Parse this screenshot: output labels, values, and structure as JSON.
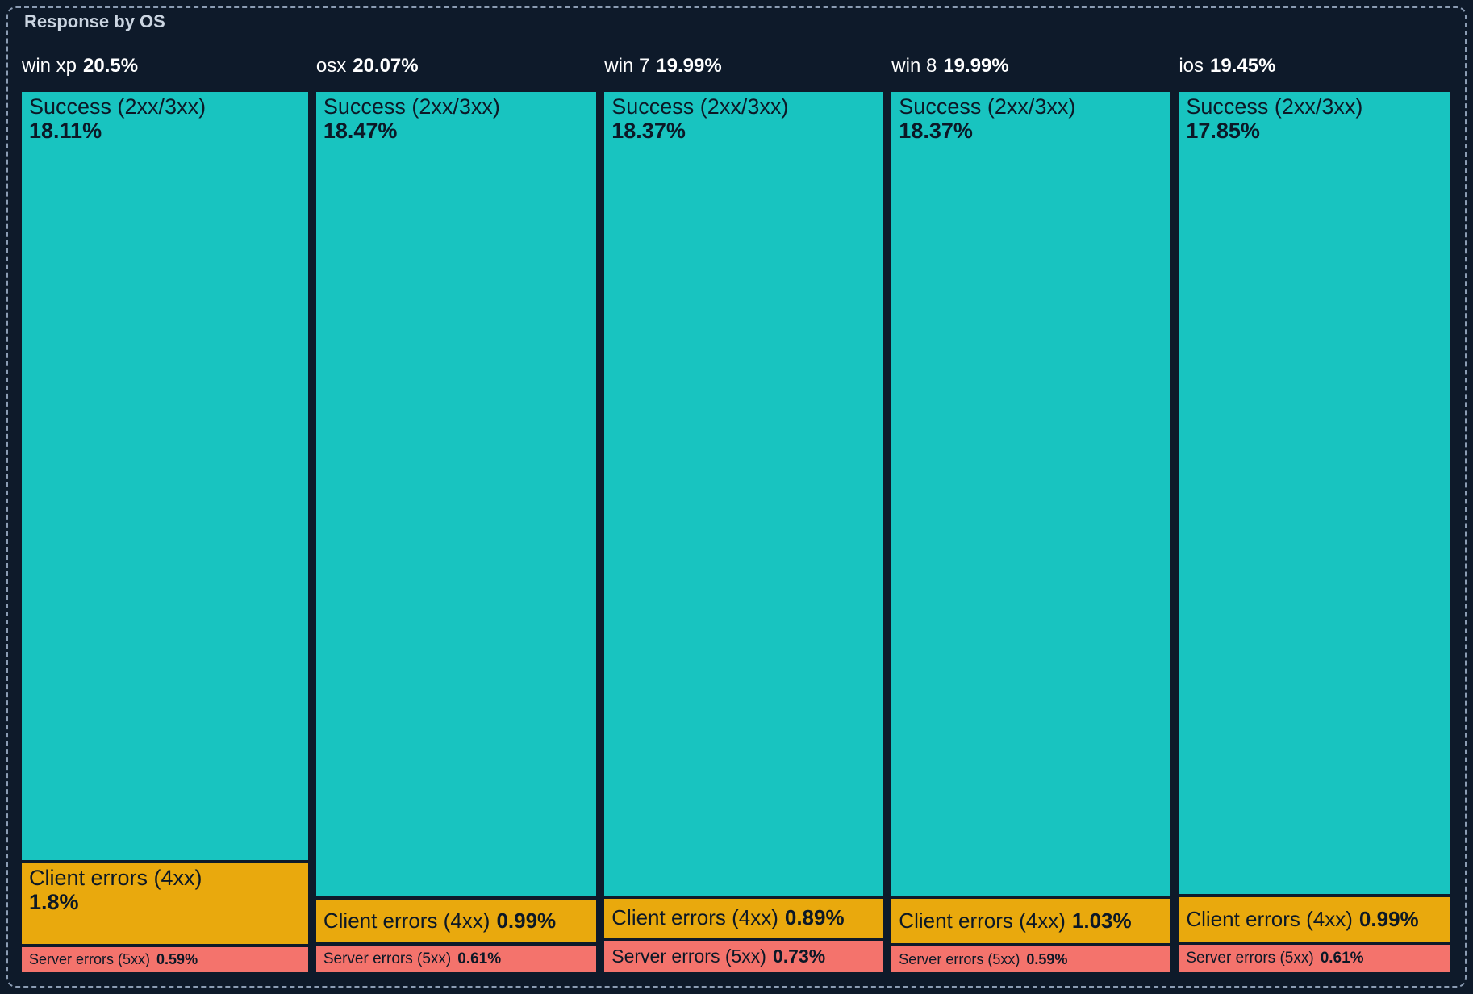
{
  "panel": {
    "title": "Response by OS"
  },
  "colors": {
    "background": "#0e1a2a",
    "dashed_border": "#8b9cb3",
    "title_text": "#cbd5e1",
    "header_text": "#ffffff",
    "block_text": "#0c1826",
    "success": "#18c4c0",
    "client_errors": "#e9a90d",
    "server_errors": "#f4736c"
  },
  "chart_data": {
    "type": "treemap",
    "title": "Response by OS",
    "legend": "none",
    "layout": "five columns (one per OS), each split vertically into stacked proportional blocks; labels inside blocks",
    "categories": [
      "win xp",
      "osx",
      "win 7",
      "win 8",
      "ios"
    ],
    "totals": [
      20.5,
      20.07,
      19.99,
      19.99,
      19.45
    ],
    "series": [
      {
        "name": "Success (2xx/3xx)",
        "values": [
          18.11,
          18.47,
          18.37,
          18.37,
          17.85
        ]
      },
      {
        "name": "Client errors (4xx)",
        "values": [
          1.8,
          0.99,
          0.89,
          1.03,
          0.99
        ]
      },
      {
        "name": "Server errors (5xx)",
        "values": [
          0.59,
          0.61,
          0.73,
          0.59,
          0.61
        ]
      }
    ],
    "columns": [
      {
        "os": "win xp",
        "total": 20.5,
        "total_display": "20.5%",
        "segments": [
          {
            "kind": "success",
            "label": "Success (2xx/3xx)",
            "value": 18.11,
            "display": "18.11%"
          },
          {
            "kind": "client",
            "label": "Client errors (4xx)",
            "value": 1.8,
            "display": "1.8%"
          },
          {
            "kind": "server",
            "label": "Server errors (5xx)",
            "value": 0.59,
            "display": "0.59%"
          }
        ]
      },
      {
        "os": "osx",
        "total": 20.07,
        "total_display": "20.07%",
        "segments": [
          {
            "kind": "success",
            "label": "Success (2xx/3xx)",
            "value": 18.47,
            "display": "18.47%"
          },
          {
            "kind": "client",
            "label": "Client errors (4xx)",
            "value": 0.99,
            "display": "0.99%"
          },
          {
            "kind": "server",
            "label": "Server errors (5xx)",
            "value": 0.61,
            "display": "0.61%"
          }
        ]
      },
      {
        "os": "win 7",
        "total": 19.99,
        "total_display": "19.99%",
        "segments": [
          {
            "kind": "success",
            "label": "Success (2xx/3xx)",
            "value": 18.37,
            "display": "18.37%"
          },
          {
            "kind": "client",
            "label": "Client errors (4xx)",
            "value": 0.89,
            "display": "0.89%"
          },
          {
            "kind": "server",
            "label": "Server errors (5xx)",
            "value": 0.73,
            "display": "0.73%"
          }
        ]
      },
      {
        "os": "win 8",
        "total": 19.99,
        "total_display": "19.99%",
        "segments": [
          {
            "kind": "success",
            "label": "Success (2xx/3xx)",
            "value": 18.37,
            "display": "18.37%"
          },
          {
            "kind": "client",
            "label": "Client errors (4xx)",
            "value": 1.03,
            "display": "1.03%"
          },
          {
            "kind": "server",
            "label": "Server errors (5xx)",
            "value": 0.59,
            "display": "0.59%"
          }
        ]
      },
      {
        "os": "ios",
        "total": 19.45,
        "total_display": "19.45%",
        "segments": [
          {
            "kind": "success",
            "label": "Success (2xx/3xx)",
            "value": 17.85,
            "display": "17.85%"
          },
          {
            "kind": "client",
            "label": "Client errors (4xx)",
            "value": 0.99,
            "display": "0.99%"
          },
          {
            "kind": "server",
            "label": "Server errors (5xx)",
            "value": 0.61,
            "display": "0.61%"
          }
        ]
      }
    ]
  }
}
